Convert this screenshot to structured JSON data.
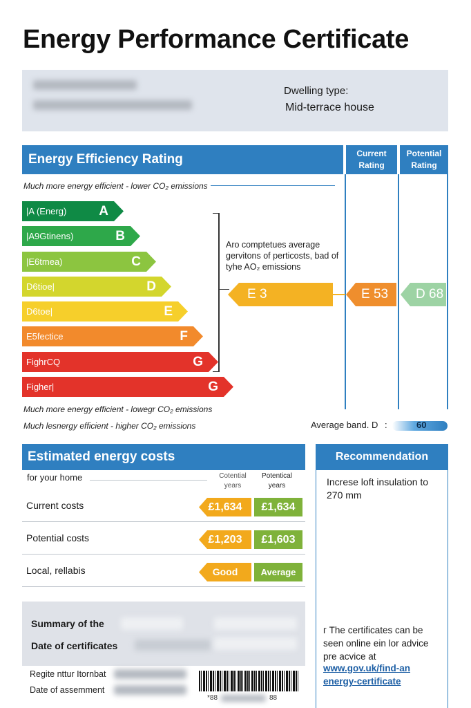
{
  "title": "Energy Performance Certificate",
  "dwelling": {
    "label": "Dwelling type:",
    "value": "Mid-terrace house"
  },
  "rating": {
    "header": "Energy Efficiency Rating",
    "current_header": "Current Rating",
    "potential_header": "Potential Rating",
    "top_note": "Much more energy efficient - lower CO₂ emissions",
    "bands": [
      {
        "label": "|A (Energ)",
        "letter": "A",
        "color": "#0f8a45"
      },
      {
        "label": "|A9Gtinens)",
        "letter": "B",
        "color": "#2ea84a"
      },
      {
        "label": "|E6tmea)",
        "letter": "C",
        "color": "#8cc540"
      },
      {
        "label": "D6tioe|",
        "letter": "D",
        "color": "#d3d62d"
      },
      {
        "label": "D6toe|",
        "letter": "E",
        "color": "#f6cf2b"
      },
      {
        "label": "E5fectice",
        "letter": "F",
        "color": "#f28a2c"
      },
      {
        "label": "FighrCQ",
        "letter": "G",
        "color": "#e3332a"
      },
      {
        "label": "Figher|",
        "letter": "G",
        "color": "#e3332a"
      }
    ],
    "explanation": "Aro comptetues average gervitons of perticosts, bad of tyhe AO₂ emissions",
    "indicator_label": "E 3",
    "current_value": "E 53",
    "potential_value": "D 68",
    "bottom_note_1": "Much more energy efficient - lowegr CO₂ emissions",
    "bottom_note_2": "Much lesnergy efficient - higher CO₂ emissions",
    "average_band": "Average band. D",
    "average_band_sep": ":",
    "average_icon_text": "60"
  },
  "costs": {
    "header": "Estimated energy costs",
    "subheader": "for your home",
    "col1": "Cotential years",
    "col2": "Potentical years",
    "rows": [
      {
        "label": "Current costs",
        "v1": "£1,634",
        "v2": "£1,634"
      },
      {
        "label": "Potential costs",
        "v1": "£1,203",
        "v2": "£1,603"
      },
      {
        "label": "Local, rellabis",
        "v1": "Good",
        "v2": "Average"
      }
    ],
    "colors": {
      "orange": "#f2a91c",
      "green": "#7fb23a"
    }
  },
  "summary": {
    "line1": "Summary of the",
    "line2": "Date of certificates",
    "reg": "Regite nttur Itornbat",
    "date": "Date of assemment",
    "barcode_left": "*88",
    "barcode_right": "88"
  },
  "recommendation": {
    "header": "Recommendation",
    "text": "Increse loft insulation to 270 mm",
    "footer_text": "г The certificates can be seen online ein lor advice pre acvice at",
    "link": "www.gov.uk/find-an energy-certificate"
  }
}
